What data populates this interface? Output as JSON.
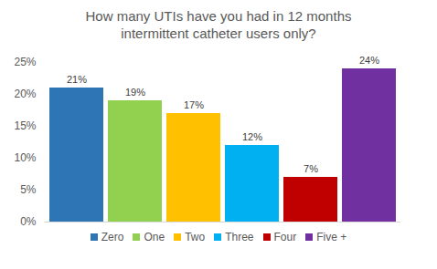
{
  "chart_data": {
    "type": "bar",
    "title": "How many UTIs have you had in 12 months\nintermittent  catheter users only?",
    "categories": [
      "Zero",
      "One",
      "Two",
      "Three",
      "Four",
      "Five +"
    ],
    "values": [
      21,
      19,
      17,
      12,
      7,
      24
    ],
    "value_labels": [
      "21%",
      "19%",
      "17%",
      "12%",
      "7%",
      "24%"
    ],
    "colors": [
      "#2e75b6",
      "#92d050",
      "#ffc000",
      "#00b0f0",
      "#c00000",
      "#7030a0"
    ],
    "ylim": [
      0,
      25
    ],
    "yticks": [
      {
        "value": 0,
        "label": "0%"
      },
      {
        "value": 5,
        "label": "5%"
      },
      {
        "value": 10,
        "label": "10%"
      },
      {
        "value": 15,
        "label": "15%"
      },
      {
        "value": 20,
        "label": "20%"
      },
      {
        "value": 25,
        "label": "25%"
      }
    ],
    "data_labels": true,
    "tick_labels": "y",
    "legend": "bottom"
  }
}
